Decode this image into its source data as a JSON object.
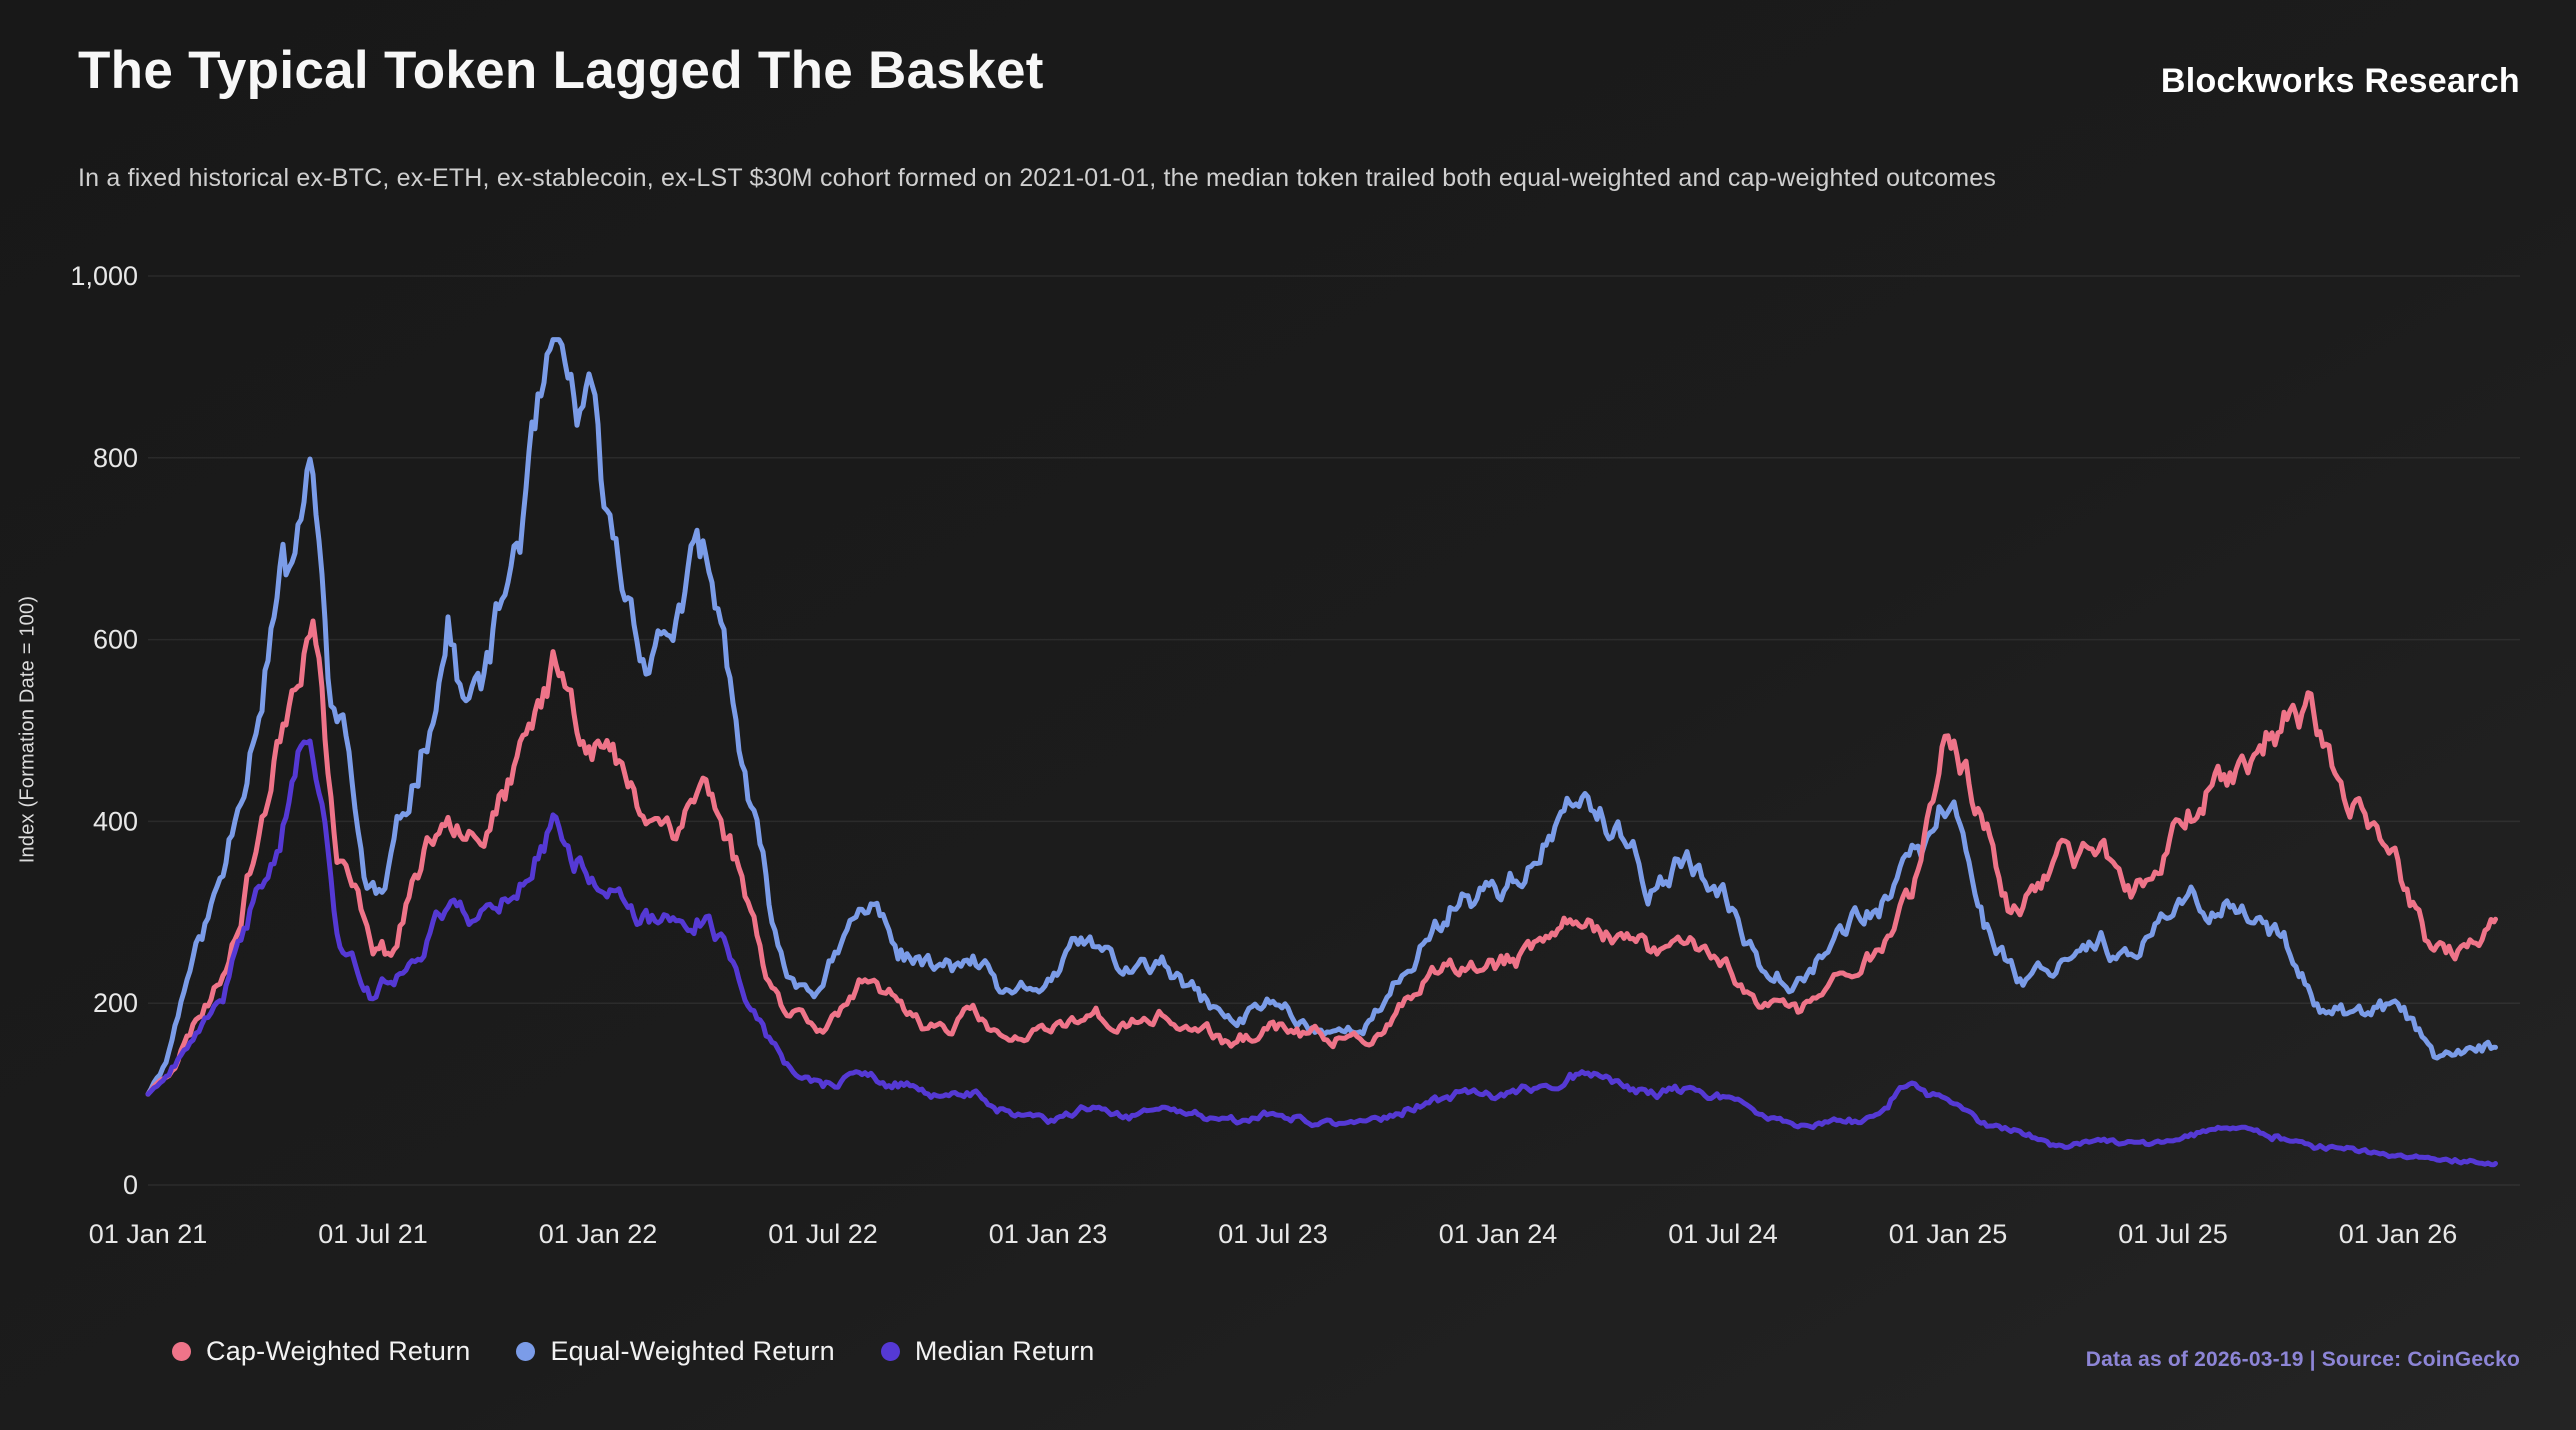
{
  "header": {
    "title": "The Typical Token Lagged The Basket",
    "subtitle": "In a fixed historical ex-BTC, ex-ETH, ex-stablecoin, ex-LST $30M cohort formed on 2021-01-01, the median token trailed both equal-weighted and cap-weighted outcomes",
    "brand": "Blockworks Research"
  },
  "footer": {
    "source_note": "Data as of 2026-03-19 | Source: CoinGecko"
  },
  "legend": [
    {
      "label": "Cap-Weighted Return",
      "color": "#ef7489"
    },
    {
      "label": "Equal-Weighted Return",
      "color": "#7b9ce8"
    },
    {
      "label": "Median Return",
      "color": "#5539d4"
    }
  ],
  "chart_data": {
    "type": "line",
    "title": "The Typical Token Lagged The Basket",
    "xlabel": "",
    "ylabel": "Index (Formation Date = 100)",
    "x_unit": "months since 2021-01-01",
    "x_range": [
      0,
      62.6
    ],
    "ylim": [
      0,
      1000
    ],
    "grid": "horizontal",
    "legend_position": "bottom-left",
    "y_ticks": [
      {
        "v": 0,
        "label": "0"
      },
      {
        "v": 200,
        "label": "200"
      },
      {
        "v": 400,
        "label": "400"
      },
      {
        "v": 600,
        "label": "600"
      },
      {
        "v": 800,
        "label": "800"
      },
      {
        "v": 1000,
        "label": "1,000"
      }
    ],
    "x_ticks": [
      {
        "m": 0,
        "label": "01 Jan 21"
      },
      {
        "m": 6,
        "label": "01 Jul 21"
      },
      {
        "m": 12,
        "label": "01 Jan 22"
      },
      {
        "m": 18,
        "label": "01 Jul 22"
      },
      {
        "m": 24,
        "label": "01 Jan 23"
      },
      {
        "m": 30,
        "label": "01 Jul 23"
      },
      {
        "m": 36,
        "label": "01 Jan 24"
      },
      {
        "m": 42,
        "label": "01 Jul 24"
      },
      {
        "m": 48,
        "label": "01 Jan 25"
      },
      {
        "m": 54,
        "label": "01 Jul 25"
      },
      {
        "m": 60,
        "label": "01 Jan 26"
      }
    ],
    "series": [
      {
        "name": "Cap-Weighted Return",
        "color": "#ef7489",
        "points": [
          [
            0,
            100
          ],
          [
            0.5,
            125
          ],
          [
            1,
            160
          ],
          [
            2,
            235
          ],
          [
            3,
            400
          ],
          [
            4.4,
            660
          ],
          [
            5,
            370
          ],
          [
            6,
            270
          ],
          [
            6.5,
            255
          ],
          [
            7,
            330
          ],
          [
            8,
            420
          ],
          [
            9,
            400
          ],
          [
            10,
            460
          ],
          [
            10.9,
            575
          ],
          [
            11.5,
            520
          ],
          [
            12,
            500
          ],
          [
            13,
            420
          ],
          [
            14,
            400
          ],
          [
            14.8,
            445
          ],
          [
            15.5,
            380
          ],
          [
            16,
            310
          ],
          [
            16.6,
            225
          ],
          [
            17,
            195
          ],
          [
            18,
            180
          ],
          [
            19,
            215
          ],
          [
            20,
            195
          ],
          [
            21,
            175
          ],
          [
            22,
            185
          ],
          [
            23,
            155
          ],
          [
            24,
            165
          ],
          [
            25,
            190
          ],
          [
            26,
            175
          ],
          [
            27,
            185
          ],
          [
            28,
            170
          ],
          [
            29,
            152
          ],
          [
            30,
            175
          ],
          [
            31,
            162
          ],
          [
            32,
            158
          ],
          [
            33,
            168
          ],
          [
            34,
            215
          ],
          [
            35,
            235
          ],
          [
            36,
            240
          ],
          [
            37,
            255
          ],
          [
            38.4,
            305
          ],
          [
            39,
            280
          ],
          [
            40,
            250
          ],
          [
            41,
            272
          ],
          [
            42,
            245
          ],
          [
            43,
            205
          ],
          [
            44,
            190
          ],
          [
            45,
            225
          ],
          [
            46,
            255
          ],
          [
            47,
            320
          ],
          [
            47.9,
            490
          ],
          [
            48.4,
            465
          ],
          [
            49,
            395
          ],
          [
            49.7,
            300
          ],
          [
            50,
            310
          ],
          [
            51,
            345
          ],
          [
            52,
            375
          ],
          [
            53,
            330
          ],
          [
            54,
            390
          ],
          [
            55,
            440
          ],
          [
            56,
            470
          ],
          [
            57.6,
            530
          ],
          [
            58,
            470
          ],
          [
            58.5,
            440
          ],
          [
            59,
            425
          ],
          [
            60,
            355
          ],
          [
            60.8,
            270
          ],
          [
            61.5,
            265
          ],
          [
            62,
            262
          ],
          [
            62.6,
            285
          ]
        ]
      },
      {
        "name": "Equal-Weighted Return",
        "color": "#7b9ce8",
        "points": [
          [
            0,
            100
          ],
          [
            0.5,
            140
          ],
          [
            1,
            225
          ],
          [
            2,
            340
          ],
          [
            3,
            560
          ],
          [
            3.6,
            690
          ],
          [
            3.9,
            640
          ],
          [
            4.3,
            805
          ],
          [
            4.8,
            560
          ],
          [
            5.3,
            480
          ],
          [
            5.8,
            330
          ],
          [
            6.3,
            315
          ],
          [
            7,
            430
          ],
          [
            7.5,
            520
          ],
          [
            8,
            620
          ],
          [
            8.5,
            520
          ],
          [
            9,
            560
          ],
          [
            9.5,
            640
          ],
          [
            10,
            740
          ],
          [
            10.8,
            890
          ],
          [
            11.2,
            840
          ],
          [
            11.8,
            830
          ],
          [
            12.3,
            700
          ],
          [
            13,
            620
          ],
          [
            13.5,
            590
          ],
          [
            14.8,
            680
          ],
          [
            15.5,
            560
          ],
          [
            16,
            420
          ],
          [
            16.6,
            300
          ],
          [
            17,
            230
          ],
          [
            18,
            220
          ],
          [
            19,
            295
          ],
          [
            19.6,
            300
          ],
          [
            20,
            260
          ],
          [
            21,
            235
          ],
          [
            22,
            245
          ],
          [
            23,
            200
          ],
          [
            24,
            225
          ],
          [
            25,
            265
          ],
          [
            26,
            235
          ],
          [
            27,
            240
          ],
          [
            28,
            205
          ],
          [
            29,
            175
          ],
          [
            30,
            205
          ],
          [
            31,
            175
          ],
          [
            32,
            170
          ],
          [
            33,
            195
          ],
          [
            34,
            265
          ],
          [
            35,
            320
          ],
          [
            36,
            330
          ],
          [
            37,
            355
          ],
          [
            38.4,
            430
          ],
          [
            39,
            385
          ],
          [
            40,
            330
          ],
          [
            41,
            355
          ],
          [
            42,
            310
          ],
          [
            43,
            250
          ],
          [
            44,
            235
          ],
          [
            45,
            280
          ],
          [
            46,
            305
          ],
          [
            47,
            340
          ],
          [
            48.2,
            430
          ],
          [
            48.6,
            350
          ],
          [
            49,
            290
          ],
          [
            50,
            225
          ],
          [
            51,
            250
          ],
          [
            52,
            280
          ],
          [
            53,
            245
          ],
          [
            54,
            295
          ],
          [
            55,
            315
          ],
          [
            56,
            300
          ],
          [
            57,
            265
          ],
          [
            58,
            200
          ],
          [
            59,
            185
          ],
          [
            60,
            195
          ],
          [
            60.5,
            170
          ],
          [
            61,
            142
          ],
          [
            62,
            140
          ],
          [
            62.6,
            152
          ]
        ]
      },
      {
        "name": "Median Return",
        "color": "#5539d4",
        "points": [
          [
            0,
            100
          ],
          [
            0.5,
            120
          ],
          [
            1,
            140
          ],
          [
            2,
            205
          ],
          [
            3,
            330
          ],
          [
            4.35,
            515
          ],
          [
            5,
            290
          ],
          [
            6,
            205
          ],
          [
            7,
            250
          ],
          [
            8,
            310
          ],
          [
            9,
            300
          ],
          [
            10,
            340
          ],
          [
            10.8,
            400
          ],
          [
            11.5,
            360
          ],
          [
            12,
            345
          ],
          [
            13,
            290
          ],
          [
            14,
            280
          ],
          [
            14.8,
            305
          ],
          [
            15.5,
            260
          ],
          [
            16,
            210
          ],
          [
            16.6,
            155
          ],
          [
            17,
            130
          ],
          [
            18,
            110
          ],
          [
            19,
            120
          ],
          [
            20,
            108
          ],
          [
            21,
            98
          ],
          [
            22,
            100
          ],
          [
            23,
            80
          ],
          [
            24,
            68
          ],
          [
            25,
            82
          ],
          [
            26,
            76
          ],
          [
            27,
            82
          ],
          [
            28,
            75
          ],
          [
            29,
            66
          ],
          [
            30,
            80
          ],
          [
            31,
            70
          ],
          [
            32,
            68
          ],
          [
            33,
            74
          ],
          [
            34,
            88
          ],
          [
            35,
            98
          ],
          [
            36,
            100
          ],
          [
            37,
            108
          ],
          [
            38.4,
            128
          ],
          [
            39,
            115
          ],
          [
            40,
            100
          ],
          [
            41,
            105
          ],
          [
            42,
            95
          ],
          [
            43,
            78
          ],
          [
            44,
            66
          ],
          [
            45,
            68
          ],
          [
            46,
            72
          ],
          [
            47.1,
            122
          ],
          [
            47.5,
            100
          ],
          [
            48,
            93
          ],
          [
            49,
            68
          ],
          [
            50,
            55
          ],
          [
            51,
            42
          ],
          [
            52,
            50
          ],
          [
            53,
            47
          ],
          [
            54,
            50
          ],
          [
            55,
            62
          ],
          [
            56,
            60
          ],
          [
            57,
            50
          ],
          [
            58,
            42
          ],
          [
            59,
            38
          ],
          [
            60,
            32
          ],
          [
            61,
            26
          ],
          [
            62,
            24
          ],
          [
            62.6,
            23
          ]
        ]
      }
    ]
  }
}
